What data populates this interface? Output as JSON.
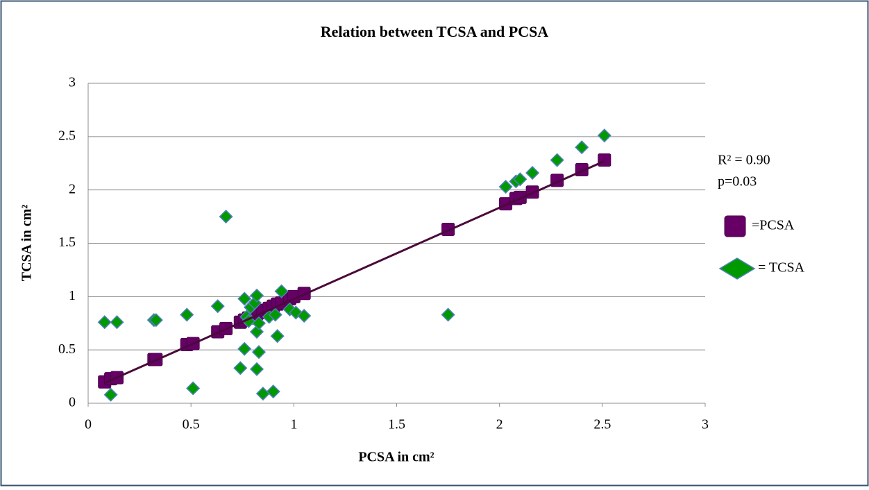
{
  "chart_data": {
    "type": "scatter",
    "title": "Relation between TCSA  and PCSA",
    "xlabel": "PCSA in cm²",
    "ylabel": "TCSA in cm²",
    "xlim": [
      0,
      3
    ],
    "xticks": [
      0,
      0.5,
      1,
      1.5,
      2,
      2.5,
      3
    ],
    "ylim": [
      0,
      3
    ],
    "yticks": [
      0,
      0.5,
      1,
      1.5,
      2,
      2.5,
      3
    ],
    "grid": true,
    "legend": "right",
    "annotations": [
      "R² = 0.90",
      "p=0.03"
    ],
    "series": [
      {
        "name": "=PCSA",
        "color": "#660066",
        "marker": "square",
        "x": [
          0.08,
          0.11,
          0.14,
          0.32,
          0.33,
          0.48,
          0.51,
          0.63,
          0.67,
          0.74,
          0.76,
          0.78,
          0.82,
          0.83,
          0.85,
          0.88,
          0.9,
          0.92,
          0.94,
          0.98,
          1.0,
          1.05,
          1.75,
          2.03,
          2.08,
          2.1,
          2.16,
          2.28,
          2.4,
          2.51
        ],
        "values": [
          0.2,
          0.23,
          0.24,
          0.41,
          0.41,
          0.55,
          0.56,
          0.67,
          0.7,
          0.76,
          0.78,
          0.8,
          0.84,
          0.85,
          0.87,
          0.89,
          0.91,
          0.93,
          0.94,
          0.98,
          1.0,
          1.03,
          1.63,
          1.87,
          1.92,
          1.93,
          1.98,
          2.09,
          2.19,
          2.28
        ]
      },
      {
        "name": "= TCSA",
        "color": "#009900",
        "marker": "diamond",
        "x": [
          0.08,
          0.14,
          0.11,
          0.32,
          0.33,
          0.48,
          0.51,
          0.63,
          0.67,
          0.74,
          0.76,
          0.76,
          0.77,
          0.78,
          0.79,
          0.81,
          0.82,
          0.82,
          0.82,
          0.83,
          0.83,
          0.85,
          0.88,
          0.9,
          0.91,
          0.92,
          0.94,
          0.98,
          1.01,
          1.05,
          1.75,
          2.03,
          2.08,
          2.1,
          2.16,
          2.28,
          2.4,
          2.51
        ],
        "values": [
          0.76,
          0.76,
          0.08,
          0.78,
          0.78,
          0.83,
          0.14,
          0.91,
          1.75,
          0.33,
          0.98,
          0.51,
          0.81,
          0.77,
          0.9,
          0.94,
          1.01,
          0.67,
          0.32,
          0.48,
          0.75,
          0.09,
          0.81,
          0.11,
          0.83,
          0.63,
          1.05,
          0.88,
          0.85,
          0.82,
          0.83,
          2.03,
          2.08,
          2.1,
          2.16,
          2.28,
          2.4,
          2.51
        ]
      }
    ],
    "trendline": {
      "color": "#4a0a3a",
      "x": [
        0.08,
        2.51
      ],
      "values": [
        0.19,
        2.27
      ]
    }
  }
}
